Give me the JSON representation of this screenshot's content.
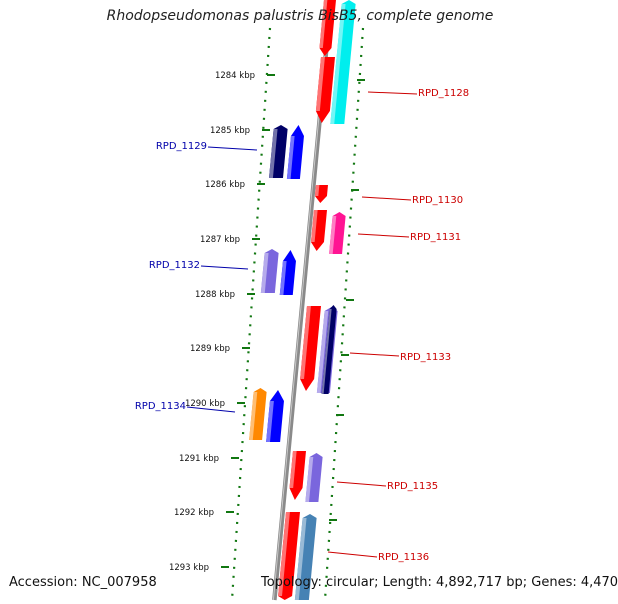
{
  "title": "Rhodopseudomonas palustris BisB5, complete genome",
  "footer": {
    "accession": "Accession: NC_007958",
    "summary": "Topology: circular; Length: 4,892,717 bp; Genes: 4,470"
  },
  "ruler": {
    "ticks": [
      "1284 kbp",
      "1285 kbp",
      "1286 kbp",
      "1287 kbp",
      "1288 kbp",
      "1289 kbp",
      "1290 kbp",
      "1291 kbp",
      "1292 kbp",
      "1293 kbp"
    ]
  },
  "gene_labels": {
    "left": [
      "RPD_1129",
      "RPD_1132",
      "RPD_1134"
    ],
    "right": [
      "RPD_1128",
      "RPD_1130",
      "RPD_1131",
      "RPD_1133",
      "RPD_1135",
      "RPD_1136"
    ]
  },
  "colors": {
    "left_label": "#0000aa",
    "right_label": "#cc0000",
    "tick_green": "#117711",
    "backbone": "#8a8a8a",
    "red": "#ff0000",
    "cyan": "#00eeee",
    "blue": "#0000ff",
    "navy": "#000066",
    "lavender": "#7a66dd",
    "orange": "#ff8800",
    "magenta": "#ff1493",
    "steelblue": "#4682b4"
  }
}
